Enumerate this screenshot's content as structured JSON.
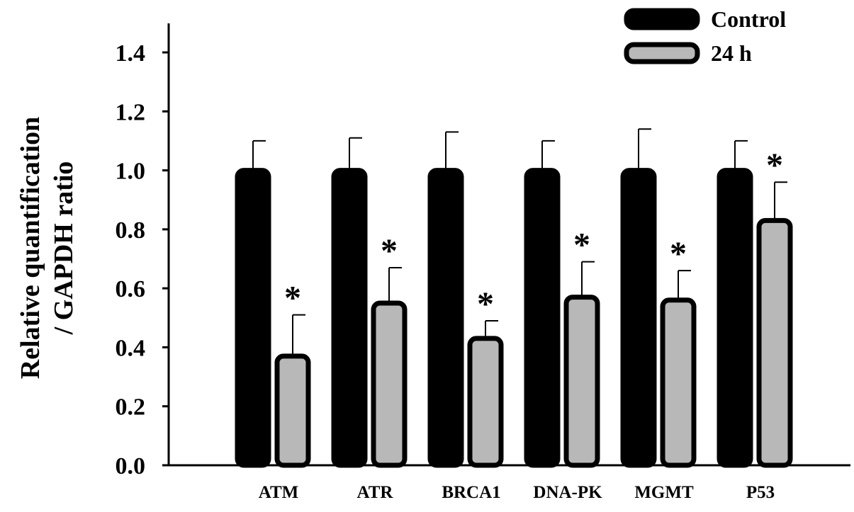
{
  "chart_data": {
    "type": "bar",
    "ylabel_lines": [
      "Relative quantification",
      "/ GAPDH ratio"
    ],
    "xlabel": "",
    "categories": [
      "ATM",
      "ATR",
      "BRCA1",
      "DNA-PK",
      "MGMT",
      "P53"
    ],
    "ylim": [
      0,
      1.4
    ],
    "yticks": [
      "0.0",
      "0.2",
      "0.4",
      "0.6",
      "0.8",
      "1.0",
      "1.2",
      "1.4"
    ],
    "series": [
      {
        "name": "Control",
        "values": [
          1.0,
          1.0,
          1.0,
          1.0,
          1.0,
          1.0
        ],
        "errors": [
          0.1,
          0.11,
          0.13,
          0.1,
          0.14,
          0.1
        ],
        "color": "#000000"
      },
      {
        "name": "24 h",
        "values": [
          0.37,
          0.55,
          0.43,
          0.57,
          0.56,
          0.83
        ],
        "errors": [
          0.14,
          0.12,
          0.06,
          0.12,
          0.1,
          0.13
        ],
        "color": "#b8b8b8"
      }
    ],
    "significance_marks": [
      "*",
      "*",
      "*",
      "*",
      "*",
      "*"
    ],
    "legend_position": "top-right",
    "grid": false
  }
}
